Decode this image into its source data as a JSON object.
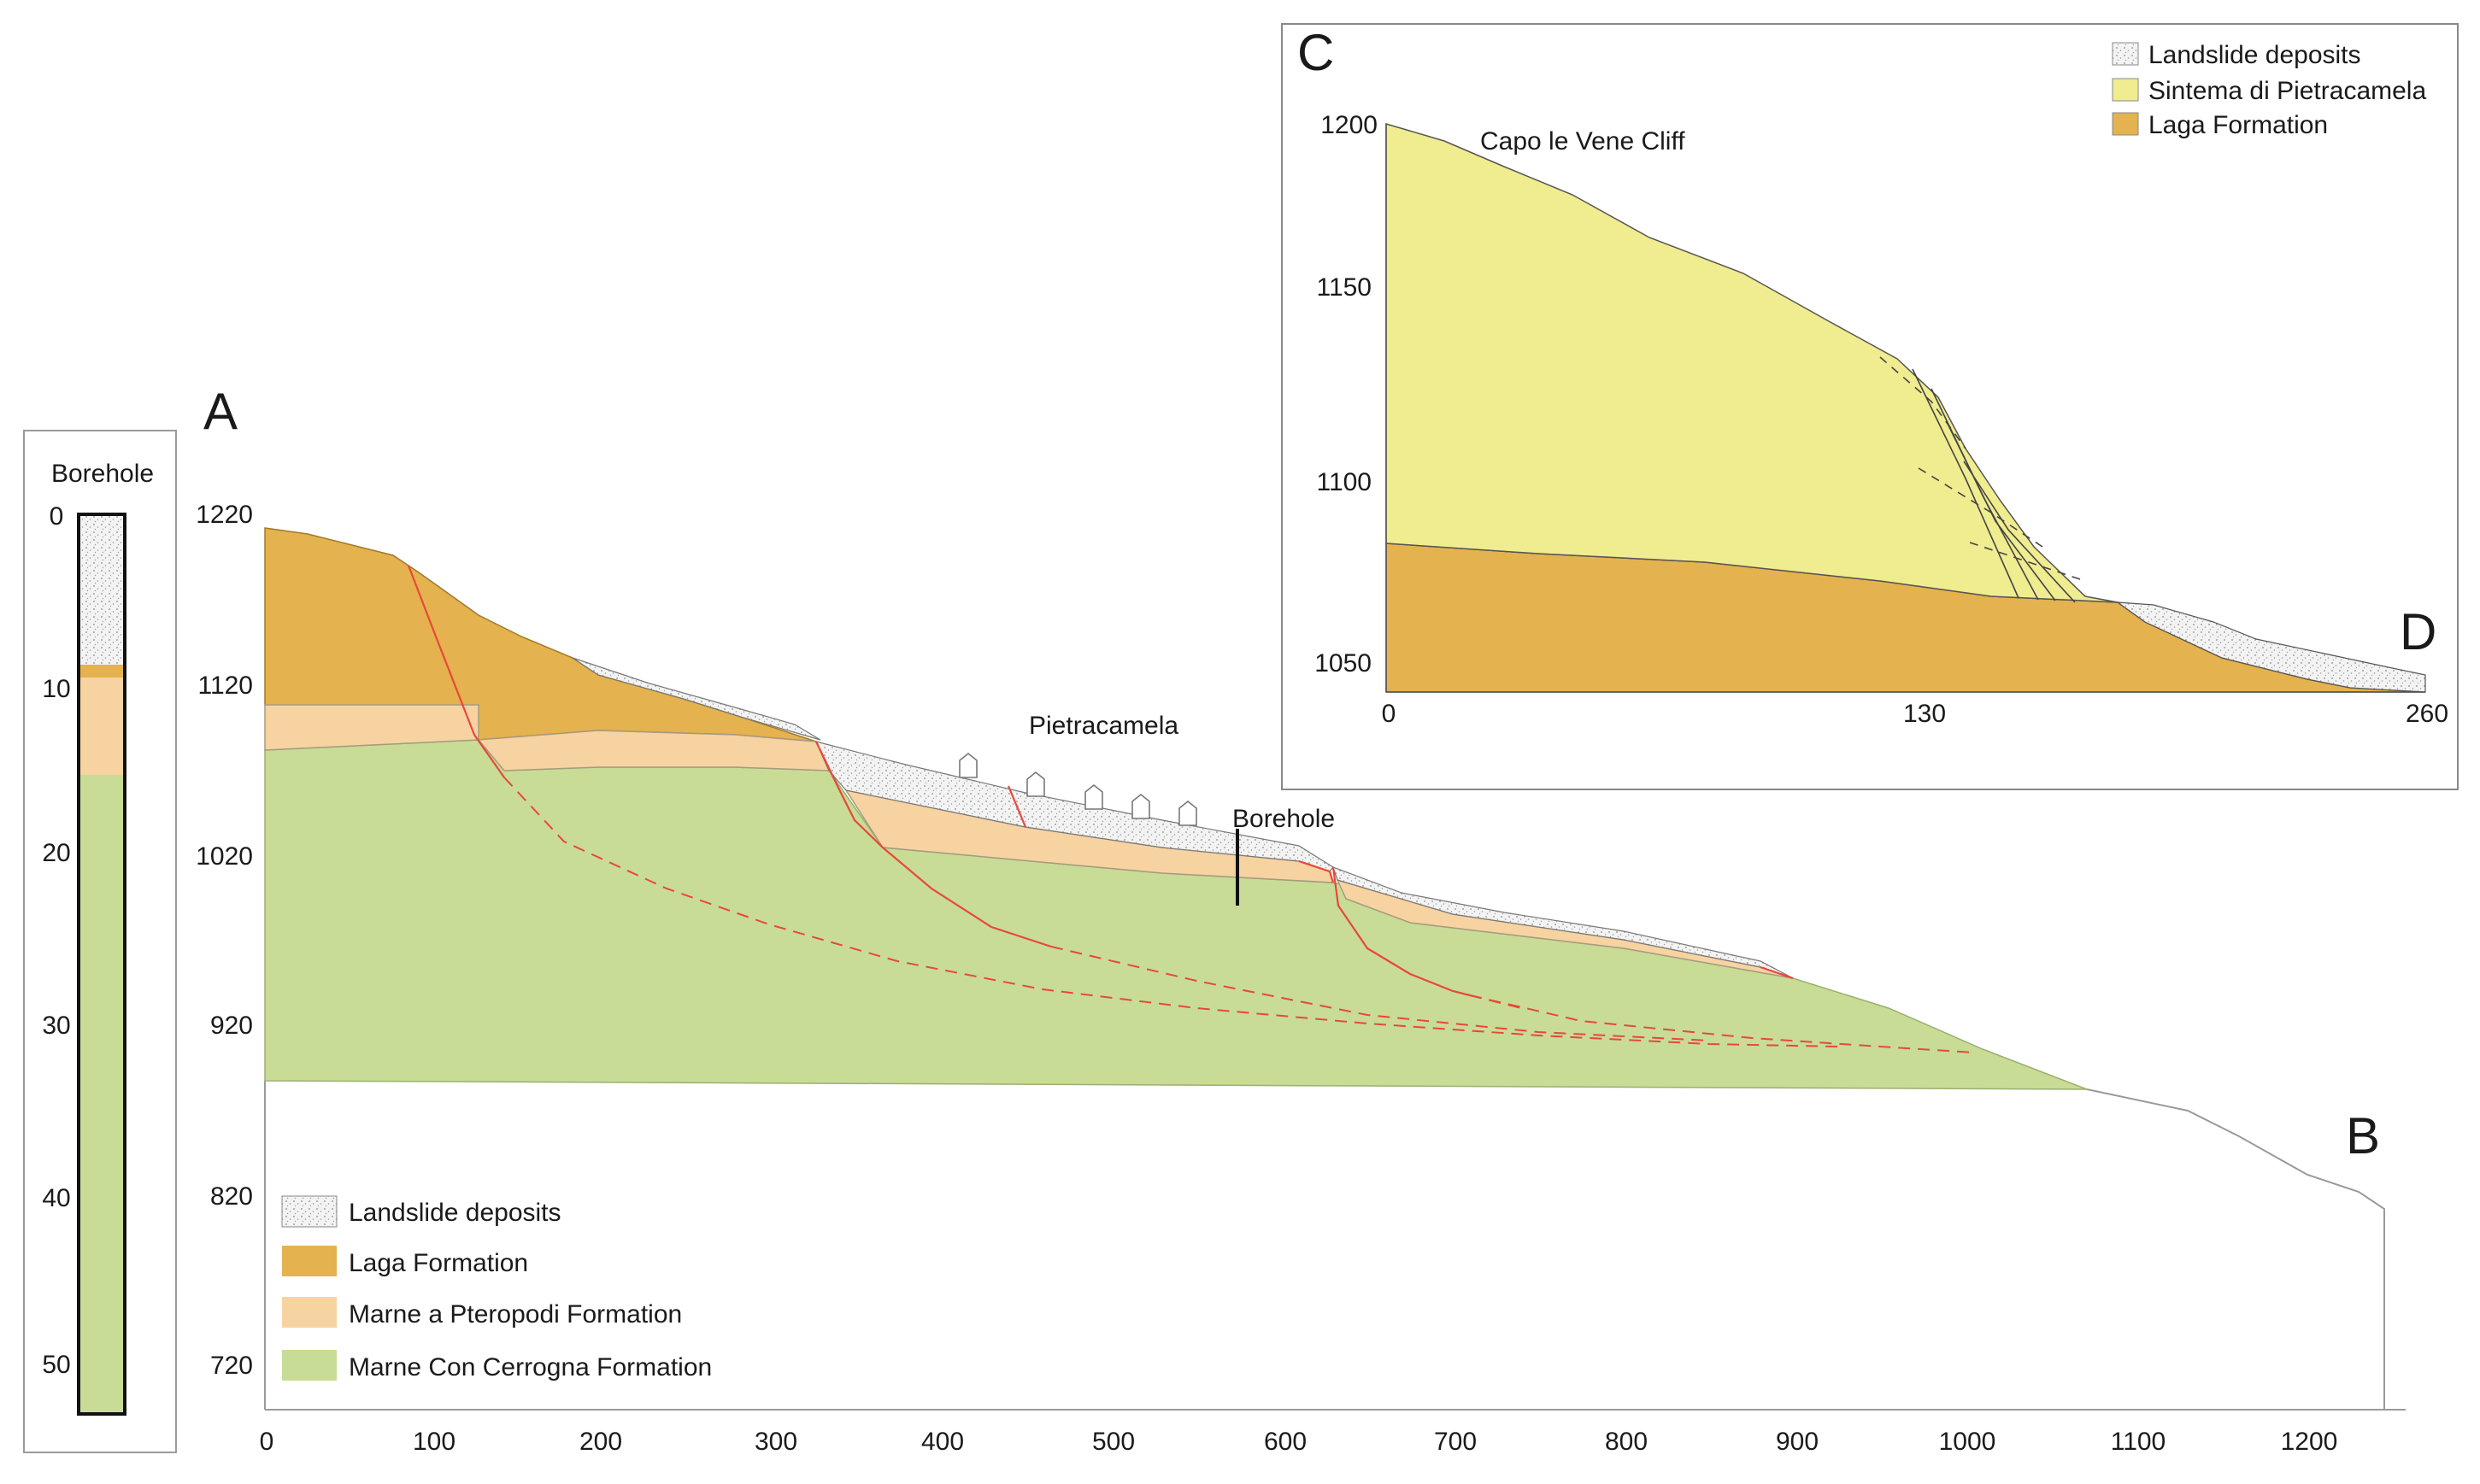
{
  "section_ab": {
    "start_label": "A",
    "end_label": "B",
    "y_ticks": [
      "1220",
      "1120",
      "1020",
      "920",
      "820",
      "720"
    ],
    "x_ticks": [
      "0",
      "100",
      "200",
      "300",
      "400",
      "500",
      "600",
      "700",
      "800",
      "900",
      "1000",
      "1100",
      "1200"
    ],
    "town_label": "Pietracamela",
    "borehole_label": "Borehole",
    "legend": [
      {
        "label": "Landslide deposits",
        "color": "#f1f1f1"
      },
      {
        "label": "Laga Formation",
        "color": "#e4b24e"
      },
      {
        "label": "Marne a Pteropodi Formation",
        "color": "#f6d3a1"
      },
      {
        "label": "Marne Con Cerrogna Formation",
        "color": "#c8dc96"
      }
    ]
  },
  "borehole_log": {
    "title": "Borehole",
    "depth_ticks": [
      "0",
      "10",
      "20",
      "30",
      "40",
      "50"
    ]
  },
  "section_cd": {
    "start_label": "C",
    "end_label": "D",
    "y_ticks": [
      "1200",
      "1150",
      "1100",
      "1050"
    ],
    "x_ticks": [
      "0",
      "130",
      "260"
    ],
    "cliff_label": "Capo le Vene Cliff",
    "legend": [
      {
        "label": "Landslide deposits",
        "color": "#f1f1f1"
      },
      {
        "label": "Sintema di Pietracamela",
        "color": "#f0ec90"
      },
      {
        "label": "Laga Formation",
        "color": "#e4b24e"
      }
    ]
  },
  "colors": {
    "laga": "#e4b24e",
    "pteropodi": "#f6d3a1",
    "cerrogna": "#c8dc96",
    "sintema": "#f0ec90",
    "landslide": "#f1f1f1",
    "fault": "#e8483a"
  }
}
